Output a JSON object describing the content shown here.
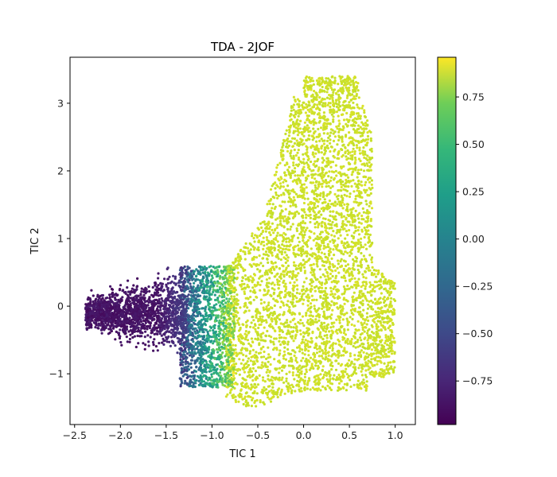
{
  "chart_data": {
    "type": "scatter",
    "title": "TDA - 2JOF",
    "xlabel": "TIC 1",
    "ylabel": "TIC 2",
    "xlim": [
      -2.55,
      1.22
    ],
    "ylim": [
      -1.75,
      3.68
    ],
    "xticks": [
      -2.5,
      -2.0,
      -1.5,
      -1.0,
      -0.5,
      0.0,
      0.5,
      1.0
    ],
    "xtick_labels": [
      "−2.5",
      "−2.0",
      "−1.5",
      "−1.0",
      "−0.5",
      "0.0",
      "0.5",
      "1.0"
    ],
    "yticks": [
      -1,
      0,
      1,
      2,
      3
    ],
    "ytick_labels": [
      "−1",
      "0",
      "1",
      "2",
      "3"
    ],
    "colorbar": {
      "colormap": "viridis",
      "range": [
        -0.98,
        0.96
      ],
      "ticks": [
        -0.75,
        -0.5,
        -0.25,
        0.0,
        0.25,
        0.5,
        0.75
      ],
      "tick_labels": [
        "−0.75",
        "−0.50",
        "−0.25",
        "0.00",
        "0.25",
        "0.50",
        "0.75"
      ]
    },
    "regions": [
      {
        "x_range": [
          -2.4,
          -1.3
        ],
        "y_center": -0.1,
        "y_spread": 0.35,
        "value_range": [
          -0.95,
          -0.7
        ]
      },
      {
        "x_range": [
          -1.3,
          -0.8
        ],
        "y_range": [
          -1.3,
          0.6
        ],
        "value_range": [
          -0.6,
          0.75
        ]
      },
      {
        "x_range": [
          -0.8,
          1.0
        ],
        "y_range": [
          -1.5,
          1.0
        ],
        "value": 0.85
      },
      {
        "x_range": [
          -0.1,
          0.65
        ],
        "y_range": [
          1.0,
          3.4
        ],
        "value": 0.85
      }
    ],
    "grid": false,
    "legend": "none"
  }
}
